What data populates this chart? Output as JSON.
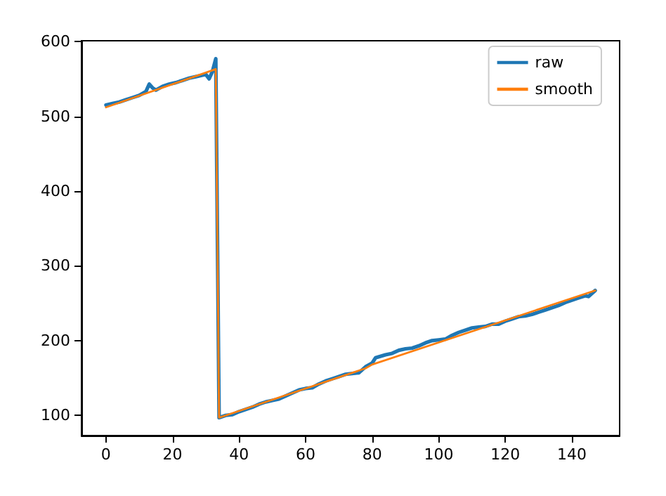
{
  "chart_data": {
    "type": "line",
    "xlim": [
      -7.35,
      154.35
    ],
    "xticks": [
      0,
      20,
      40,
      60,
      80,
      100,
      120,
      140
    ],
    "ylim": [
      73,
      601
    ],
    "yticks": [
      100,
      200,
      300,
      400,
      500,
      600
    ],
    "grid": false,
    "legend": "top right",
    "marker": "none",
    "line_style": "solid",
    "series": [
      {
        "name": "raw",
        "color": "#1f77b4",
        "x": [
          0,
          2,
          4,
          6,
          8,
          10,
          12,
          13,
          14,
          15,
          17,
          19,
          21,
          23,
          25,
          27,
          29,
          30,
          31,
          32,
          33,
          34,
          36,
          38,
          40,
          42,
          44,
          46,
          48,
          50,
          52,
          54,
          56,
          58,
          60,
          62,
          64,
          66,
          68,
          70,
          72,
          74,
          76,
          78,
          80,
          81,
          84,
          86,
          88,
          90,
          92,
          94,
          96,
          98,
          100,
          102,
          104,
          106,
          108,
          110,
          112,
          114,
          116,
          118,
          120,
          122,
          124,
          126,
          128,
          130,
          132,
          134,
          136,
          138,
          140,
          142,
          144,
          145,
          147
        ],
        "values": [
          515,
          517,
          519,
          522,
          525,
          528,
          533,
          543,
          538,
          535,
          540,
          543,
          545,
          548,
          551,
          553,
          555,
          556,
          550,
          560,
          577,
          97,
          100,
          101,
          105,
          108,
          111,
          115,
          118,
          120,
          122,
          126,
          130,
          134,
          136,
          137,
          142,
          146,
          149,
          152,
          155,
          156,
          157,
          165,
          170,
          177,
          181,
          183,
          187,
          189,
          190,
          193,
          197,
          200,
          201,
          202,
          207,
          211,
          214,
          217,
          218,
          219,
          222,
          222,
          226,
          229,
          232,
          233,
          235,
          238,
          241,
          244,
          247,
          251,
          254,
          257,
          260,
          259,
          267
        ]
      },
      {
        "name": "smooth",
        "color": "#ff7f0e",
        "x": [
          0,
          33,
          34,
          78,
          80,
          147
        ],
        "values": [
          512,
          563,
          97,
          163,
          168,
          267
        ]
      }
    ]
  }
}
